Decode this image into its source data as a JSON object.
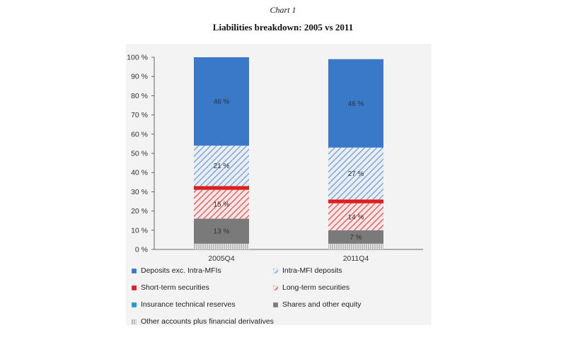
{
  "figure_label": "Chart 1",
  "chart_data": {
    "type": "bar",
    "stacked": true,
    "title": "Liabilities breakdown: 2005 vs 2011",
    "categories": [
      "2005Q4",
      "2011Q4"
    ],
    "ylim": [
      0,
      100
    ],
    "yticks": [
      "0 %",
      "10 %",
      "20 %",
      "30 %",
      "40 %",
      "50 %",
      "60 %",
      "70 %",
      "80 %",
      "90 %",
      "100 %"
    ],
    "legend_position": "bottom",
    "series": [
      {
        "name": "Other accounts plus financial derivatives",
        "values": [
          3,
          3
        ],
        "color": "#d8d8d8",
        "pattern": "vlines"
      },
      {
        "name": "Shares and other equity",
        "values": [
          13,
          7
        ],
        "color": "#7a7a7a",
        "pattern": "solid",
        "labels": [
          "13 %",
          "7 %"
        ]
      },
      {
        "name": "Insurance technical reserves",
        "values": [
          0,
          0
        ],
        "color": "#1f9ad6",
        "pattern": "solid"
      },
      {
        "name": "Long-term securities",
        "values": [
          15,
          14
        ],
        "color": "#e03030",
        "pattern": "hatch",
        "labels": [
          "15 %",
          "14 %"
        ]
      },
      {
        "name": "Short-term securities",
        "values": [
          2,
          2
        ],
        "color": "#dd1f1f",
        "pattern": "solid"
      },
      {
        "name": "Intra-MFI deposits",
        "values": [
          21,
          27
        ],
        "color": "#7fa5d6",
        "pattern": "hatch",
        "labels": [
          "21 %",
          "27 %"
        ]
      },
      {
        "name": "Deposits exc. Intra-MFIs",
        "values": [
          46,
          46
        ],
        "color": "#3a78c8",
        "pattern": "solid",
        "labels": [
          "46 %",
          "46 %"
        ]
      }
    ],
    "legend": [
      "Deposits exc. Intra-MFIs",
      "Intra-MFI deposits",
      "Short-term securities",
      "Long-term securities",
      "Insurance technical reserves",
      "Shares and other equity",
      "Other accounts plus financial derivatives"
    ]
  }
}
